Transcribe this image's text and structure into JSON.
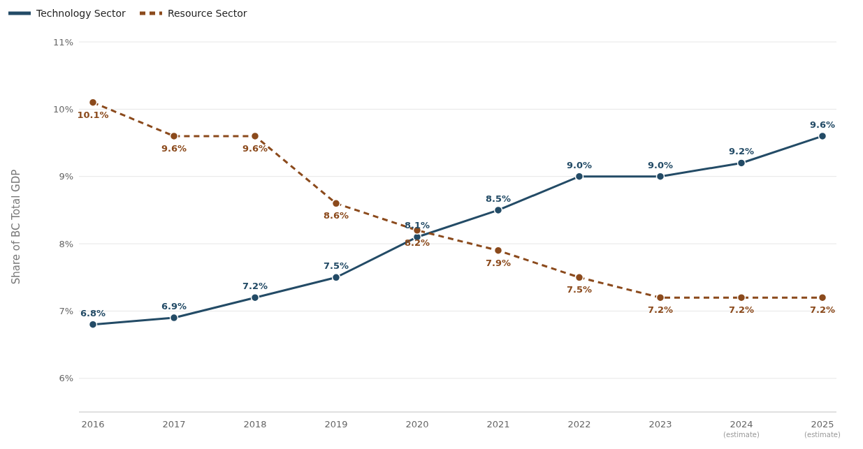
{
  "chart_data": {
    "type": "line",
    "ylabel": "Share of BC Total GDP",
    "categories": [
      "2016",
      "2017",
      "2018",
      "2019",
      "2020",
      "2021",
      "2022",
      "2023",
      "2024 (estimate)",
      "2025 (estimate)"
    ],
    "series": [
      {
        "name": "Technology Sector",
        "color": "#234b66",
        "line_style": "solid",
        "values": [
          6.8,
          6.9,
          7.2,
          7.5,
          8.1,
          8.5,
          9.0,
          9.0,
          9.2,
          9.6
        ],
        "value_labels": [
          "6.8%",
          "6.9%",
          "7.2%",
          "7.5%",
          "8.1%",
          "8.5%",
          "9.0%",
          "9.0%",
          "9.2%",
          "9.6%"
        ]
      },
      {
        "name": "Resource Sector",
        "color": "#8b4a1c",
        "line_style": "dashed",
        "values": [
          10.1,
          9.6,
          9.6,
          8.6,
          8.2,
          7.9,
          7.5,
          7.2,
          7.2,
          7.2
        ],
        "value_labels": [
          "10.1%",
          "9.6%",
          "9.6%",
          "8.6%",
          "8.2%",
          "7.9%",
          "7.5%",
          "7.2%",
          "7.2%",
          "7.2%"
        ]
      }
    ],
    "ylim": [
      5.5,
      11
    ],
    "yticks": [
      {
        "value": 6,
        "label": "6%"
      },
      {
        "value": 7,
        "label": "7%"
      },
      {
        "value": 8,
        "label": "8%"
      },
      {
        "value": 9,
        "label": "9%"
      },
      {
        "value": 10,
        "label": "10%"
      },
      {
        "value": 11,
        "label": "11%"
      }
    ],
    "grid": "y",
    "legend": "top left",
    "marker": "circle"
  }
}
